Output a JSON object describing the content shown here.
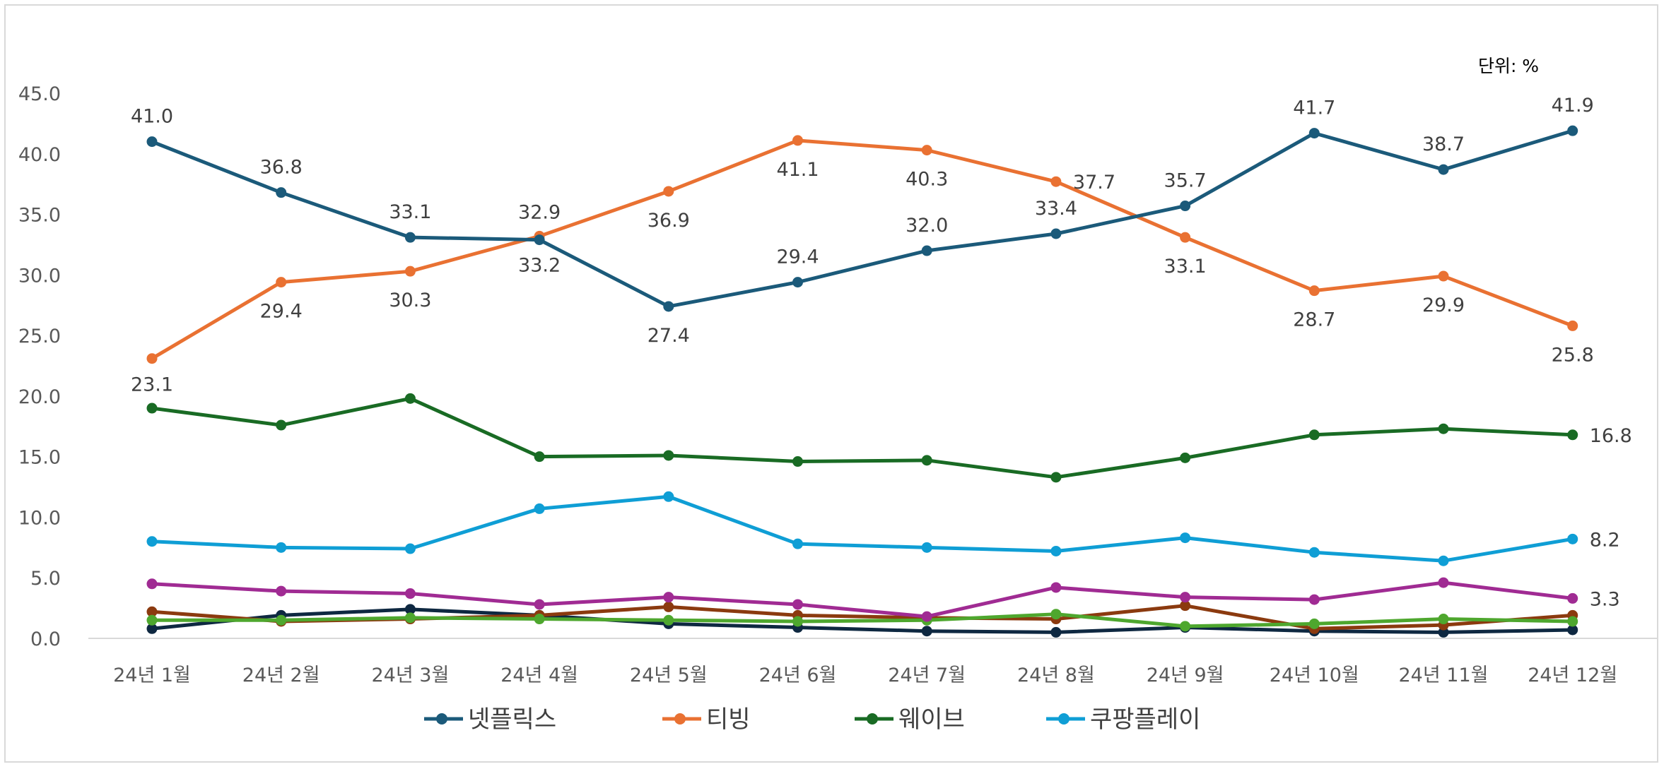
{
  "chart_data": {
    "type": "line",
    "unit_label": "단위: %",
    "categories": [
      "24년 1월",
      "24년 2월",
      "24년 3월",
      "24년 4월",
      "24년 5월",
      "24년 6월",
      "24년 7월",
      "24년 8월",
      "24년 9월",
      "24년 10월",
      "24년 11월",
      "24년 12월"
    ],
    "ylim": [
      0,
      45
    ],
    "yticks": [
      "0.0",
      "5.0",
      "10.0",
      "15.0",
      "20.0",
      "25.0",
      "30.0",
      "35.0",
      "40.0",
      "45.0"
    ],
    "grid": false,
    "legend_position": "bottom",
    "series": [
      {
        "name": "넷플릭스",
        "color": "#1b5a7a",
        "in_legend": true,
        "values": [
          41.0,
          36.8,
          33.1,
          32.9,
          27.4,
          29.4,
          32.0,
          33.4,
          35.7,
          41.7,
          38.7,
          41.9
        ],
        "labels": [
          "41.0",
          "36.8",
          "33.1",
          "32.9",
          "27.4",
          "29.4",
          "32.0",
          "33.4",
          "35.7",
          "41.7",
          "38.7",
          "41.9"
        ]
      },
      {
        "name": "티빙",
        "color": "#e97132",
        "in_legend": true,
        "values": [
          23.1,
          29.4,
          30.3,
          33.2,
          36.9,
          41.1,
          40.3,
          37.7,
          33.1,
          28.7,
          29.9,
          25.8
        ],
        "labels": [
          "23.1",
          "29.4",
          "30.3",
          "33.2",
          "36.9",
          "41.1",
          "40.3",
          "37.7",
          "33.1",
          "28.7",
          "29.9",
          "25.8"
        ]
      },
      {
        "name": "웨이브",
        "color": "#196b24",
        "in_legend": true,
        "values": [
          19.0,
          17.6,
          19.8,
          15.0,
          15.1,
          14.6,
          14.7,
          13.3,
          14.9,
          16.8,
          17.3,
          16.8
        ],
        "labels": [
          "",
          "",
          "",
          "",
          "",
          "",
          "",
          "",
          "",
          "",
          "",
          "16.8"
        ]
      },
      {
        "name": "쿠팡플레이",
        "color": "#0f9ed5",
        "in_legend": true,
        "values": [
          8.0,
          7.5,
          7.4,
          10.7,
          11.7,
          7.8,
          7.5,
          7.2,
          8.3,
          7.1,
          6.4,
          8.2
        ],
        "labels": [
          "",
          "",
          "",
          "",
          "",
          "",
          "",
          "",
          "",
          "",
          "",
          "8.2"
        ]
      },
      {
        "name": "",
        "color": "#a02b93",
        "in_legend": false,
        "values": [
          4.5,
          3.9,
          3.7,
          2.8,
          3.4,
          2.8,
          1.8,
          4.2,
          3.4,
          3.2,
          4.6,
          3.3
        ],
        "labels": [
          "",
          "",
          "",
          "",
          "",
          "",
          "",
          "",
          "",
          "",
          "",
          "3.3"
        ]
      },
      {
        "name": "",
        "color": "#4ea72e",
        "in_legend": false,
        "values": [
          1.5,
          1.5,
          1.7,
          1.6,
          1.5,
          1.4,
          1.5,
          2.0,
          1.0,
          1.2,
          1.6,
          1.4
        ],
        "labels": []
      },
      {
        "name": "",
        "color": "#8b3a0f",
        "in_legend": false,
        "values": [
          2.2,
          1.4,
          1.6,
          1.9,
          2.6,
          1.9,
          1.7,
          1.6,
          2.7,
          0.8,
          1.1,
          1.9
        ],
        "labels": []
      },
      {
        "name": "",
        "color": "#0e2841",
        "in_legend": false,
        "values": [
          0.8,
          1.9,
          2.4,
          1.9,
          1.2,
          0.9,
          0.6,
          0.5,
          0.9,
          0.6,
          0.5,
          0.7
        ],
        "labels": []
      }
    ]
  }
}
